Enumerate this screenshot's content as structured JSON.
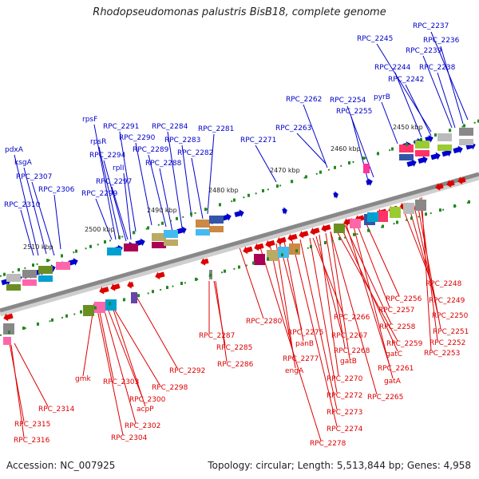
{
  "title": "Rhodopseudomonas palustris BisB18, complete genome",
  "footer": {
    "accession": "Accession: NC_007925",
    "summary": "Topology: circular; Length: 5,513,844 bp; Genes: 4,958"
  },
  "colors": {
    "forward": "#0000cc",
    "reverse": "#dd0000",
    "backbone": "#888888",
    "tick": "#228822"
  },
  "kbp_ticks": [
    "2450 kbp",
    "2460 kbp",
    "2470 kbp",
    "2480 kbp",
    "2490 kbp",
    "2500 kbp",
    "2510 kbp"
  ],
  "forward_labels": [
    "RPC_2237",
    "RPC_2236",
    "RPC_2245",
    "RPC_2239",
    "RPC_2244",
    "RPC_2238",
    "RPC_2242",
    "RPC_2262",
    "RPC_2254",
    "RPC_2255",
    "pyrB",
    "rpsF",
    "RPC_2291",
    "RPC_2284",
    "RPC_2281",
    "RPC_2263",
    "rpsR",
    "RPC_2290",
    "RPC_2283",
    "RPC_2294",
    "RPC_2289",
    "RPC_2282",
    "RPC_2271",
    "pdxA",
    "rplI",
    "RPC_2288",
    "ksgA",
    "RPC_2297",
    "RPC_2307",
    "RPC_2306",
    "RPC_2299",
    "RPC_2310"
  ],
  "reverse_labels": [
    "RPC_2248",
    "RPC_2256",
    "RPC_2249",
    "RPC_2257",
    "RPC_2250",
    "RPC_2258",
    "RPC_2251",
    "RPC_2266",
    "RPC_2252",
    "RPC_2259",
    "RPC_2280",
    "RPC_2253",
    "RPC_2275",
    "RPC_2267",
    "gatC",
    "RPC_2287",
    "panB",
    "RPC_2268",
    "RPC_2261",
    "RPC_2285",
    "gatB",
    "RPC_2277",
    "RPC_2286",
    "RPC_2292",
    "engA",
    "RPC_2270",
    "gatA",
    "gmk",
    "RPC_2303",
    "RPC_2298",
    "RPC_2272",
    "RPC_2265",
    "RPC_2300",
    "RPC_2314",
    "acpP",
    "RPC_2273",
    "RPC_2315",
    "RPC_2302",
    "RPC_2274",
    "RPC_2316",
    "RPC_2304",
    "RPC_2278"
  ]
}
